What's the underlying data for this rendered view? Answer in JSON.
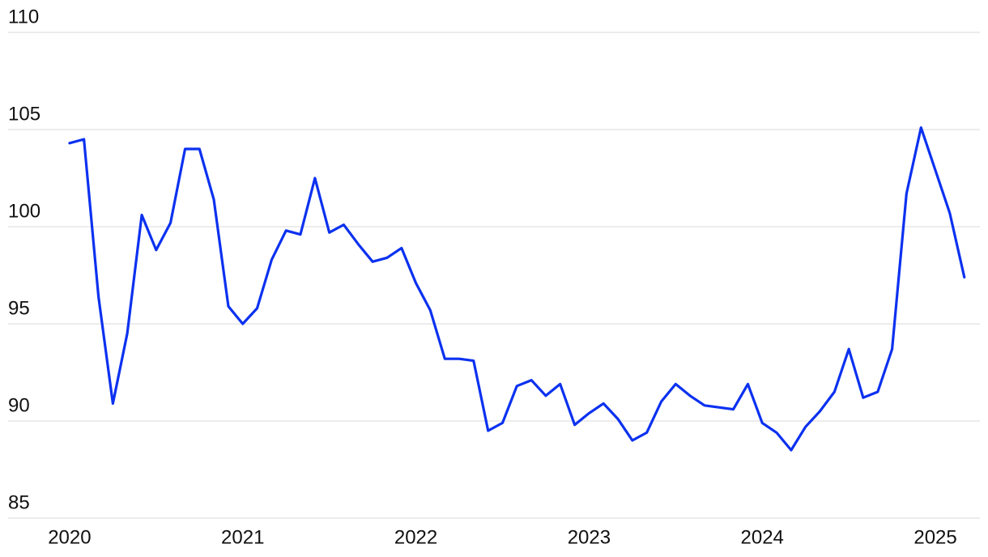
{
  "chart_data": {
    "type": "line",
    "x": [
      2020.0,
      2020.083,
      2020.167,
      2020.25,
      2020.333,
      2020.417,
      2020.5,
      2020.583,
      2020.667,
      2020.75,
      2020.833,
      2020.917,
      2021.0,
      2021.083,
      2021.167,
      2021.25,
      2021.333,
      2021.417,
      2021.5,
      2021.583,
      2021.667,
      2021.75,
      2021.833,
      2021.917,
      2022.0,
      2022.083,
      2022.167,
      2022.25,
      2022.333,
      2022.417,
      2022.5,
      2022.583,
      2022.667,
      2022.75,
      2022.833,
      2022.917,
      2023.0,
      2023.083,
      2023.167,
      2023.25,
      2023.333,
      2023.417,
      2023.5,
      2023.583,
      2023.667,
      2023.75,
      2023.833,
      2023.917,
      2024.0,
      2024.083,
      2024.167,
      2024.25,
      2024.333,
      2024.417,
      2024.5,
      2024.583,
      2024.667,
      2024.75,
      2024.833,
      2024.917,
      2025.0,
      2025.083,
      2025.167
    ],
    "series": [
      {
        "color": "#0b31f0",
        "values": [
          104.3,
          104.5,
          96.4,
          90.9,
          94.5,
          100.6,
          98.8,
          100.2,
          104.0,
          104.0,
          101.4,
          95.9,
          95.0,
          95.8,
          98.3,
          99.8,
          99.6,
          102.5,
          99.7,
          100.1,
          99.1,
          98.2,
          98.4,
          98.9,
          97.1,
          95.7,
          93.2,
          93.2,
          93.1,
          89.5,
          89.9,
          91.8,
          92.1,
          91.3,
          91.9,
          89.8,
          90.4,
          90.9,
          90.1,
          89.0,
          89.4,
          91.0,
          91.9,
          91.3,
          90.8,
          90.7,
          90.6,
          91.9,
          89.9,
          89.4,
          88.5,
          89.7,
          90.5,
          91.5,
          93.7,
          91.2,
          91.5,
          93.7,
          101.7,
          105.1,
          102.9,
          100.7,
          97.4
        ]
      }
    ],
    "xlim": [
      2019.645,
      2025.257
    ],
    "xticks": [
      2020,
      2021,
      2022,
      2023,
      2024,
      2025
    ],
    "ylim": [
      85,
      110
    ],
    "yticks": [
      85,
      90,
      95,
      100,
      105,
      110
    ],
    "grid": true
  }
}
